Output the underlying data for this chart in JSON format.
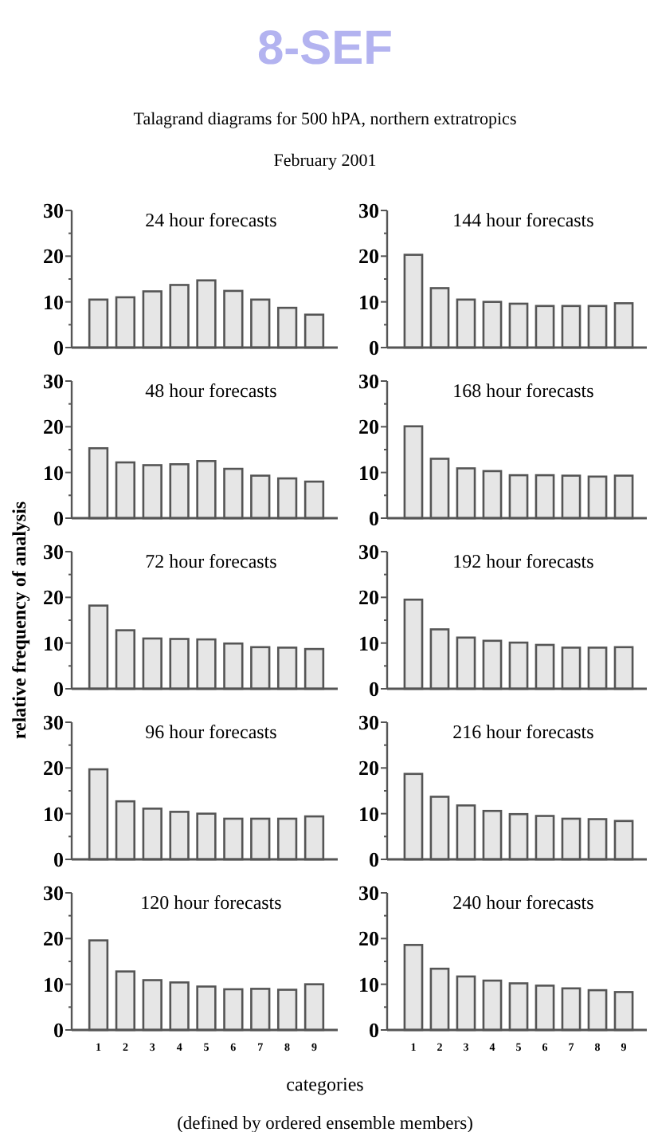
{
  "chart_data": [
    {
      "type": "bar",
      "title": "24 hour forecasts",
      "categories": [
        null,
        null,
        null,
        null,
        null,
        null,
        null,
        null,
        null
      ],
      "values": [
        10.5,
        11,
        12.3,
        13.7,
        14.7,
        12.4,
        10.5,
        8.7,
        7.2
      ],
      "color": "#e6e6e6",
      "ylim": [
        0,
        30
      ],
      "yticks": [
        0,
        {
          "value": 5,
          "label": null
        },
        10,
        {
          "value": 15,
          "label": null
        },
        20,
        {
          "value": 25,
          "label": null
        },
        30
      ],
      "tick_labels": "y",
      "grid": false,
      "annotations": [
        "8-SEF",
        "Talagrand diagrams for 500 hPA, northern extratropics",
        "February 2001"
      ]
    },
    {
      "type": "bar",
      "title": "144 hour forecasts",
      "categories": [
        null,
        null,
        null,
        null,
        null,
        null,
        null,
        null,
        null
      ],
      "values": [
        20.3,
        13,
        10.5,
        10,
        9.6,
        9.1,
        9.1,
        9.1,
        9.7
      ],
      "color": "#e6e6e6",
      "ylim": [
        0,
        30
      ],
      "yticks": [
        0,
        {
          "value": 5,
          "label": null
        },
        10,
        {
          "value": 15,
          "label": null
        },
        20,
        {
          "value": 25,
          "label": null
        },
        30
      ],
      "tick_labels": "y",
      "grid": false
    },
    {
      "type": "bar",
      "title": "48 hour forecasts",
      "categories": [
        null,
        null,
        null,
        null,
        null,
        null,
        null,
        null,
        null
      ],
      "values": [
        15.3,
        12.2,
        11.6,
        11.8,
        12.5,
        10.8,
        9.3,
        8.7,
        8
      ],
      "color": "#e6e6e6",
      "ylim": [
        0,
        30
      ],
      "yticks": [
        0,
        {
          "value": 5,
          "label": null
        },
        10,
        {
          "value": 15,
          "label": null
        },
        20,
        {
          "value": 25,
          "label": null
        },
        30
      ],
      "tick_labels": "y",
      "grid": false
    },
    {
      "type": "bar",
      "title": "168 hour forecasts",
      "categories": [
        null,
        null,
        null,
        null,
        null,
        null,
        null,
        null,
        null
      ],
      "values": [
        20.1,
        13,
        10.9,
        10.3,
        9.4,
        9.4,
        9.3,
        9.1,
        9.3
      ],
      "color": "#e6e6e6",
      "ylim": [
        0,
        30
      ],
      "yticks": [
        0,
        {
          "value": 5,
          "label": null
        },
        10,
        {
          "value": 15,
          "label": null
        },
        20,
        {
          "value": 25,
          "label": null
        },
        30
      ],
      "tick_labels": "y",
      "grid": false
    },
    {
      "type": "bar",
      "title": "72 hour forecasts",
      "ylabel": "relative frequency of analysis",
      "categories": [
        null,
        null,
        null,
        null,
        null,
        null,
        null,
        null,
        null
      ],
      "values": [
        18.2,
        12.8,
        11,
        10.9,
        10.8,
        9.9,
        9.1,
        9,
        8.7
      ],
      "color": "#e6e6e6",
      "ylim": [
        0,
        30
      ],
      "yticks": [
        0,
        {
          "value": 5,
          "label": null
        },
        10,
        {
          "value": 15,
          "label": null
        },
        20,
        {
          "value": 25,
          "label": null
        },
        30
      ],
      "tick_labels": "y",
      "grid": false
    },
    {
      "type": "bar",
      "title": "192 hour forecasts",
      "categories": [
        null,
        null,
        null,
        null,
        null,
        null,
        null,
        null,
        null
      ],
      "values": [
        19.5,
        13,
        11.2,
        10.5,
        10.1,
        9.6,
        9,
        9,
        9.1
      ],
      "color": "#e6e6e6",
      "ylim": [
        0,
        30
      ],
      "yticks": [
        0,
        {
          "value": 5,
          "label": null
        },
        10,
        {
          "value": 15,
          "label": null
        },
        20,
        {
          "value": 25,
          "label": null
        },
        30
      ],
      "tick_labels": "y",
      "grid": false
    },
    {
      "type": "bar",
      "title": "96 hour forecasts",
      "categories": [
        null,
        null,
        null,
        null,
        null,
        null,
        null,
        null,
        null
      ],
      "values": [
        19.7,
        12.7,
        11.1,
        10.4,
        10,
        8.9,
        8.9,
        8.9,
        9.4
      ],
      "color": "#e6e6e6",
      "ylim": [
        0,
        30
      ],
      "yticks": [
        0,
        {
          "value": 5,
          "label": null
        },
        10,
        {
          "value": 15,
          "label": null
        },
        20,
        {
          "value": 25,
          "label": null
        },
        30
      ],
      "tick_labels": "y",
      "grid": false
    },
    {
      "type": "bar",
      "title": "216 hour forecasts",
      "categories": [
        null,
        null,
        null,
        null,
        null,
        null,
        null,
        null,
        null
      ],
      "values": [
        18.7,
        13.7,
        11.8,
        10.6,
        9.9,
        9.5,
        8.9,
        8.8,
        8.4
      ],
      "color": "#e6e6e6",
      "ylim": [
        0,
        30
      ],
      "yticks": [
        0,
        {
          "value": 5,
          "label": null
        },
        10,
        {
          "value": 15,
          "label": null
        },
        20,
        {
          "value": 25,
          "label": null
        },
        30
      ],
      "tick_labels": "y",
      "grid": false
    },
    {
      "type": "bar",
      "title": "120 hour forecasts",
      "xlabel": "categories",
      "categories": [
        "1",
        "2",
        "3",
        "4",
        "5",
        "6",
        "7",
        "8",
        "9"
      ],
      "values": [
        19.6,
        12.8,
        10.9,
        10.4,
        9.5,
        8.9,
        9,
        8.8,
        10
      ],
      "color": "#e6e6e6",
      "ylim": [
        0,
        30
      ],
      "yticks": [
        0,
        {
          "value": 5,
          "label": null
        },
        10,
        {
          "value": 15,
          "label": null
        },
        20,
        {
          "value": 25,
          "label": null
        },
        30
      ],
      "grid": false,
      "annotations": [
        "(defined by ordered ensemble members)"
      ]
    },
    {
      "type": "bar",
      "title": "240 hour forecasts",
      "categories": [
        "1",
        "2",
        "3",
        "4",
        "5",
        "6",
        "7",
        "8",
        "9"
      ],
      "values": [
        18.6,
        13.4,
        11.7,
        10.8,
        10.2,
        9.7,
        9.1,
        8.7,
        8.3
      ],
      "color": "#e6e6e6",
      "ylim": [
        0,
        30
      ],
      "yticks": [
        0,
        {
          "value": 5,
          "label": null
        },
        10,
        {
          "value": 15,
          "label": null
        },
        20,
        {
          "value": 25,
          "label": null
        },
        30
      ],
      "grid": false
    }
  ]
}
